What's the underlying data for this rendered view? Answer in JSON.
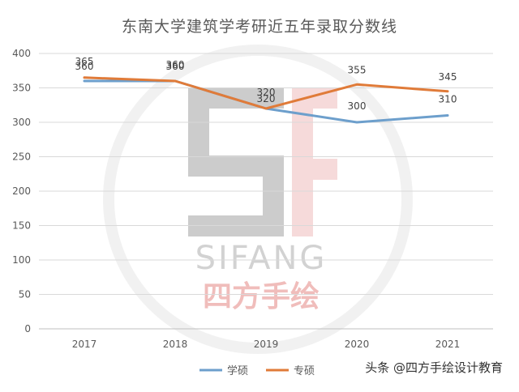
{
  "chart_data": {
    "type": "line",
    "title": "东南大学建筑学考研近五年录取分数线",
    "categories": [
      "2017",
      "2018",
      "2019",
      "2020",
      "2021"
    ],
    "series": [
      {
        "name": "学硕",
        "color": "#6d9fcc",
        "values": [
          360,
          360,
          320,
          300,
          310
        ]
      },
      {
        "name": "专硕",
        "color": "#e07b39",
        "values": [
          365,
          360,
          320,
          355,
          345
        ]
      }
    ],
    "ylim": [
      0,
      400
    ],
    "yticks": [
      "0",
      "50",
      "100",
      "150",
      "200",
      "250",
      "300",
      "350",
      "400"
    ],
    "grid": true,
    "legend": "bottom"
  },
  "watermark": {
    "text": "SIFANG",
    "text_cn": "四方手绘"
  },
  "footer": {
    "credit": "头条 @四方手绘设计教育"
  }
}
